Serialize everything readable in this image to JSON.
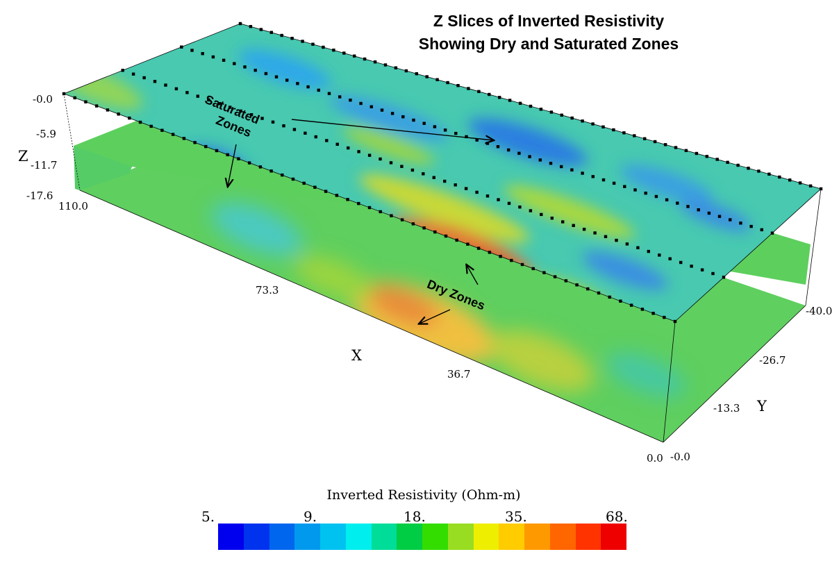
{
  "title_line1": "Z Slices of Inverted Resistivity",
  "title_line2": "Showing Dry and Saturated Zones",
  "chart_data": {
    "type": "heatmap",
    "title": "Z Slices of Inverted Resistivity Showing Dry and Saturated Zones",
    "xlabel": "X",
    "ylabel": "Y",
    "zlabel": "Z",
    "x_ticks": [
      "110.0",
      "73.3",
      "36.7",
      "0.0"
    ],
    "y_ticks": [
      "-0.0",
      "-13.3",
      "-26.7",
      "-40.0"
    ],
    "z_ticks": [
      "-0.0",
      "-5.9",
      "-11.7",
      "-17.6"
    ],
    "xlim": [
      0,
      110
    ],
    "ylim": [
      -40,
      0
    ],
    "zlim": [
      -17.6,
      0
    ],
    "z_slices": [
      0,
      -5.9,
      -17.6
    ],
    "electrode_lines": 4,
    "colorbar": {
      "title": "Inverted Resistivity (Ohm-m)",
      "tick_labels": [
        "5.",
        "9.",
        "18.",
        "35.",
        "68."
      ],
      "colors": [
        "#0000ee",
        "#0033ee",
        "#0066ee",
        "#0099ee",
        "#00c2f0",
        "#00eeee",
        "#00dd99",
        "#00cc44",
        "#33dd00",
        "#99dd22",
        "#eeee00",
        "#ffcc00",
        "#ff9900",
        "#ff6600",
        "#ff3300",
        "#ee0000"
      ]
    }
  },
  "annotations": {
    "saturated_line1": "Saturated",
    "saturated_line2": "Zones",
    "dry": "Dry Zones"
  }
}
